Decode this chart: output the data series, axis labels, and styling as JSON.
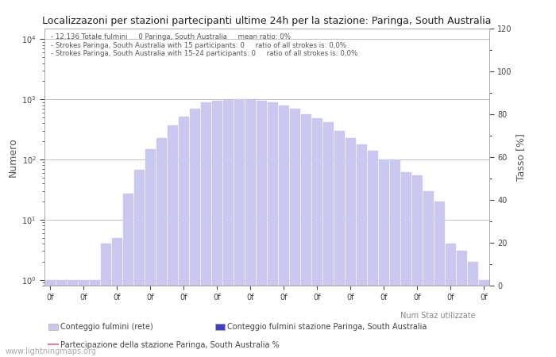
{
  "title": "Localizzazoni per stazioni partecipanti ultime 24h per la stazione: Paringa, South Australia",
  "annotation_lines": [
    "12.136 Totale fulmini     0 Paringa, South Australia     mean ratio: 0%",
    "Strokes Paringa, South Australia with 15 participants: 0     ratio of all strokes is: 0,0%",
    "Strokes Paringa, South Australia with 15-24 participants: 0     ratio of all strokes is: 0,0%"
  ],
  "ylabel_left": "Numero",
  "ylabel_right": "Tasso [%]",
  "ylabel_right2": "Num Staz utilizzate",
  "ylim_right": [
    0,
    120
  ],
  "bar_values_light": [
    1,
    1,
    1,
    1,
    1,
    4,
    5,
    27,
    67,
    150,
    230,
    370,
    510,
    700,
    900,
    950,
    980,
    1000,
    980,
    950,
    880,
    800,
    700,
    570,
    480,
    420,
    300,
    230,
    180,
    140,
    100,
    100,
    62,
    55,
    30,
    20,
    4,
    3,
    2,
    1
  ],
  "bar_values_dark": [
    0,
    0,
    0,
    0,
    0,
    0,
    0,
    0,
    0,
    0,
    0,
    0,
    0,
    0,
    0,
    0,
    0,
    0,
    0,
    0,
    0,
    0,
    0,
    0,
    0,
    0,
    0,
    0,
    0,
    0,
    0,
    0,
    0,
    0,
    0,
    0,
    0,
    0,
    0,
    0
  ],
  "line_values": [
    0,
    0,
    0,
    0,
    0,
    0,
    0,
    0,
    0,
    0,
    0,
    0,
    0,
    0,
    0,
    0,
    0,
    0,
    0,
    0,
    0,
    0,
    0,
    0,
    0,
    0,
    0,
    0,
    0,
    0,
    0,
    0,
    0,
    0,
    0,
    0,
    0,
    0,
    0,
    0
  ],
  "bar_color_light": "#c8c8f0",
  "bar_color_dark": "#4040c0",
  "line_color": "#e080a0",
  "legend_labels": [
    "Conteggio fulmini (rete)",
    "Conteggio fulmini stazione Paringa, South Australia",
    "Partecipazione della stazione Paringa, South Australia %"
  ],
  "legend_label_right": "Num Staz utilizzate",
  "tick_label": "0f",
  "n_ticks": 14,
  "watermark": "www.lightningmaps.org",
  "background_color": "#ffffff",
  "grid_color": "#aaaaaa",
  "ytick_labels": [
    "10^0",
    "10^1",
    "10^2",
    "10^3",
    "10^4"
  ],
  "ytick_values": [
    1,
    10,
    100,
    1000,
    10000
  ]
}
